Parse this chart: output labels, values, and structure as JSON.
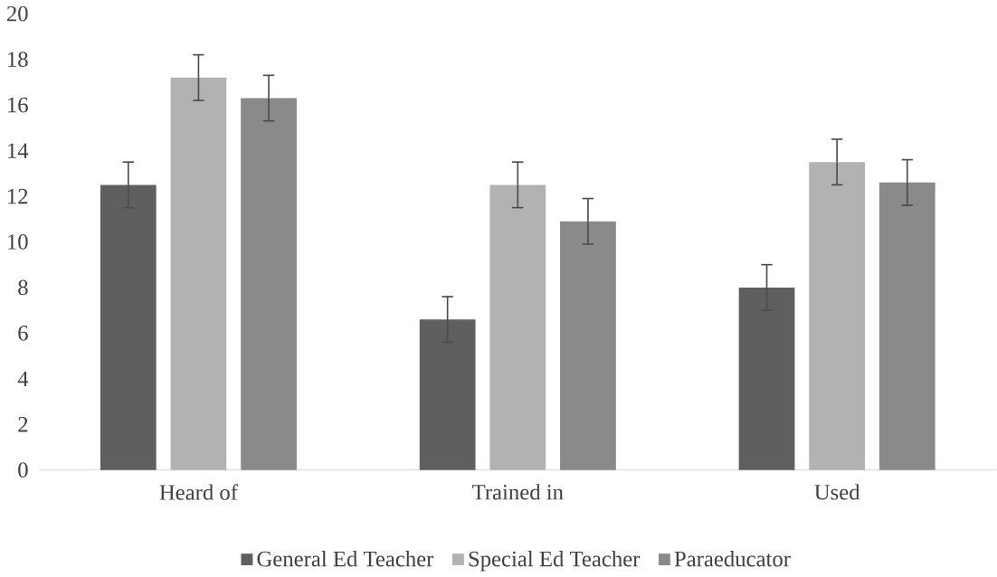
{
  "chart_data": {
    "type": "bar",
    "categories": [
      "Heard of",
      "Trained in",
      "Used"
    ],
    "series": [
      {
        "name": "General Ed Teacher",
        "color": "#5f5f5f",
        "values": [
          12.5,
          6.6,
          8.0
        ],
        "errors": [
          1,
          1,
          1
        ]
      },
      {
        "name": "Special Ed Teacher",
        "color": "#b2b2b2",
        "values": [
          17.2,
          12.5,
          13.5
        ],
        "errors": [
          1,
          1,
          1
        ]
      },
      {
        "name": "Paraeducator",
        "color": "#8a8a8a",
        "values": [
          16.3,
          10.9,
          12.6
        ],
        "errors": [
          1,
          1,
          1
        ]
      }
    ],
    "ylim": [
      0,
      20
    ],
    "yticks": [
      0,
      2,
      4,
      6,
      8,
      10,
      12,
      14,
      16,
      18,
      20
    ],
    "legend": "bottom"
  }
}
